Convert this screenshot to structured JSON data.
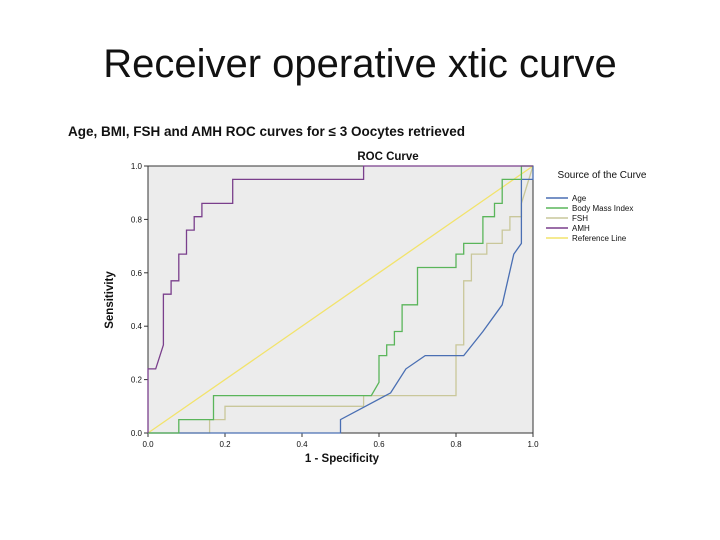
{
  "slide": {
    "title": "Receiver operative xtic curve"
  },
  "chart_heading": "Age, BMI, FSH and AMH ROC curves for ≤ 3 Oocytes retrieved",
  "chart_data": {
    "type": "line",
    "title": "ROC Curve",
    "xlabel": "1 - Specificity",
    "ylabel": "Sensitivity",
    "xlim": [
      0,
      1
    ],
    "ylim": [
      0,
      1
    ],
    "xticks": [
      "0.0",
      "0.2",
      "0.4",
      "0.6",
      "0.8",
      "1.0"
    ],
    "yticks": [
      "0.0",
      "0.2",
      "0.4",
      "0.6",
      "0.8",
      "1.0"
    ],
    "grid": false,
    "legend_title": "Source of the Curve",
    "legend_position": "right",
    "plot_background": "#ececec",
    "series": [
      {
        "name": "Age",
        "color": "#4a6fb3",
        "x": [
          0,
          0.5,
          0.5,
          0.63,
          0.67,
          0.67,
          0.72,
          0.78,
          0.82,
          0.87,
          0.92,
          0.95,
          0.95,
          0.97,
          0.97,
          1.0,
          1.0
        ],
        "y": [
          0,
          0,
          0.05,
          0.15,
          0.24,
          0.24,
          0.29,
          0.29,
          0.29,
          0.38,
          0.48,
          0.67,
          0.67,
          0.71,
          0.95,
          0.95,
          1.0
        ]
      },
      {
        "name": "Body Mass Index",
        "color": "#5ab55a",
        "x": [
          0,
          0.08,
          0.08,
          0.17,
          0.17,
          0.4,
          0.4,
          0.58,
          0.6,
          0.6,
          0.62,
          0.62,
          0.64,
          0.64,
          0.66,
          0.66,
          0.7,
          0.7,
          0.8,
          0.8,
          0.82,
          0.82,
          0.87,
          0.87,
          0.9,
          0.9,
          0.92,
          0.92,
          0.97,
          0.97,
          1.0,
          1.0
        ],
        "y": [
          0,
          0,
          0.05,
          0.05,
          0.14,
          0.14,
          0.14,
          0.14,
          0.19,
          0.29,
          0.29,
          0.33,
          0.33,
          0.38,
          0.38,
          0.48,
          0.48,
          0.62,
          0.62,
          0.67,
          0.67,
          0.71,
          0.71,
          0.81,
          0.81,
          0.86,
          0.86,
          0.95,
          0.95,
          1.0,
          1.0,
          1.0
        ]
      },
      {
        "name": "FSH",
        "color": "#c9c79a",
        "x": [
          0,
          0.16,
          0.16,
          0.2,
          0.2,
          0.4,
          0.4,
          0.56,
          0.56,
          0.8,
          0.8,
          0.82,
          0.82,
          0.84,
          0.84,
          0.88,
          0.88,
          0.92,
          0.92,
          0.94,
          0.94,
          0.97,
          0.97,
          1.0
        ],
        "y": [
          0,
          0,
          0.05,
          0.05,
          0.1,
          0.1,
          0.1,
          0.1,
          0.14,
          0.14,
          0.33,
          0.33,
          0.57,
          0.57,
          0.67,
          0.67,
          0.71,
          0.71,
          0.76,
          0.76,
          0.81,
          0.81,
          0.86,
          1.0
        ]
      },
      {
        "name": "AMH",
        "color": "#7a3f8c",
        "x": [
          0,
          0,
          0.02,
          0.04,
          0.04,
          0.06,
          0.06,
          0.08,
          0.08,
          0.1,
          0.1,
          0.12,
          0.12,
          0.14,
          0.14,
          0.18,
          0.18,
          0.22,
          0.22,
          0.3,
          0.3,
          0.56,
          0.56,
          0.6,
          1.0
        ],
        "y": [
          0,
          0.24,
          0.24,
          0.33,
          0.52,
          0.52,
          0.57,
          0.57,
          0.67,
          0.67,
          0.76,
          0.76,
          0.81,
          0.81,
          0.86,
          0.86,
          0.86,
          0.86,
          0.95,
          0.95,
          0.95,
          0.95,
          1.0,
          1.0,
          1.0
        ]
      },
      {
        "name": "Reference Line",
        "color": "#f2e36b",
        "x": [
          0,
          1
        ],
        "y": [
          0,
          1
        ]
      }
    ]
  }
}
